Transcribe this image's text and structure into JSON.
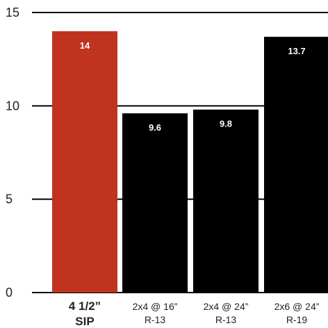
{
  "chart_data": {
    "type": "bar",
    "categories": [
      {
        "line1": "4 1/2”",
        "line2": "SIP"
      },
      {
        "line1": "2x4 @ 16”",
        "line2": "R-13"
      },
      {
        "line1": "2x4 @ 24”",
        "line2": "R-13"
      },
      {
        "line1": "2x6 @ 24”",
        "line2": "R-19"
      }
    ],
    "values": [
      14,
      9.6,
      9.8,
      13.7
    ],
    "value_labels": [
      "14",
      "9.6",
      "9.8",
      "13.7"
    ],
    "yticks": [
      0,
      5,
      10,
      15
    ],
    "ylim": [
      0,
      15
    ],
    "grid": "horizontal",
    "colors": {
      "highlight": "#c0331f",
      "bar": "#000000",
      "grid": "#000000",
      "text": "#222222",
      "value_text": "#ffffff"
    },
    "highlight_index": 0
  }
}
